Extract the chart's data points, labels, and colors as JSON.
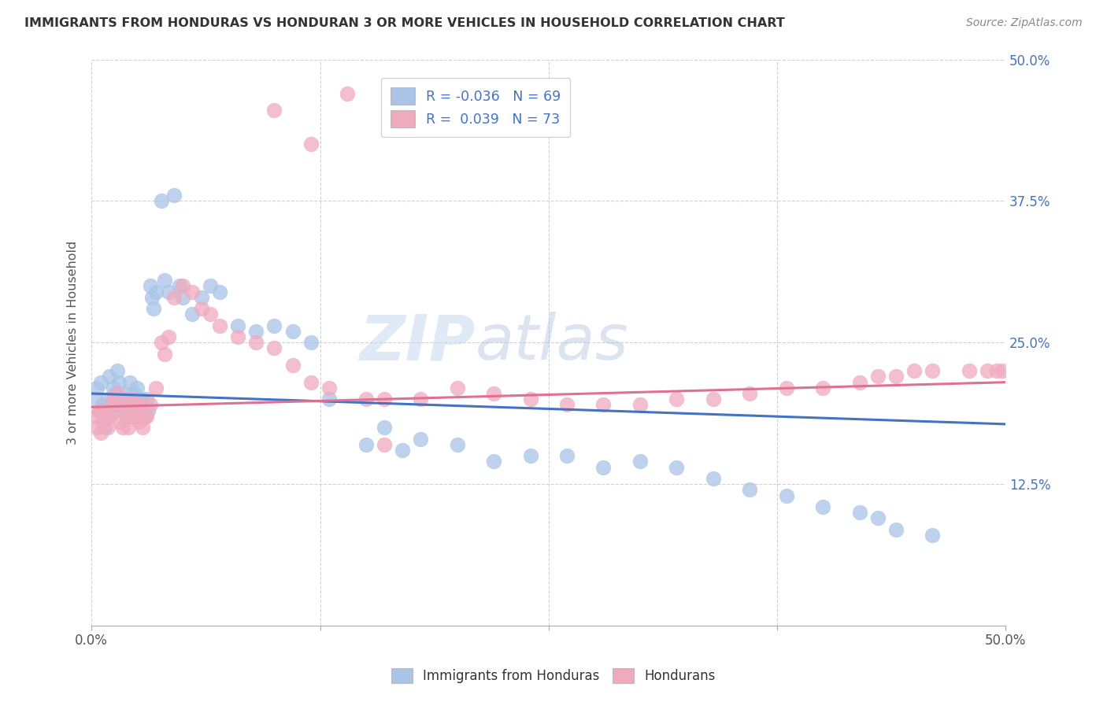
{
  "title": "IMMIGRANTS FROM HONDURAS VS HONDURAN 3 OR MORE VEHICLES IN HOUSEHOLD CORRELATION CHART",
  "source": "Source: ZipAtlas.com",
  "ylabel": "3 or more Vehicles in Household",
  "xlim": [
    0.0,
    0.5
  ],
  "ylim": [
    0.0,
    0.5
  ],
  "blue_color": "#aac4e8",
  "pink_color": "#f0aabe",
  "blue_line_color": "#4472c4",
  "pink_line_color": "#e07090",
  "watermark_zip": "ZIP",
  "watermark_atlas": "atlas",
  "blue_scatter_x": [
    0.002,
    0.003,
    0.004,
    0.005,
    0.006,
    0.007,
    0.008,
    0.009,
    0.01,
    0.011,
    0.012,
    0.013,
    0.014,
    0.015,
    0.016,
    0.017,
    0.018,
    0.019,
    0.02,
    0.021,
    0.022,
    0.023,
    0.024,
    0.025,
    0.026,
    0.027,
    0.028,
    0.029,
    0.03,
    0.031,
    0.032,
    0.033,
    0.034,
    0.035,
    0.038,
    0.04,
    0.042,
    0.045,
    0.048,
    0.05,
    0.055,
    0.06,
    0.065,
    0.07,
    0.08,
    0.09,
    0.1,
    0.11,
    0.12,
    0.13,
    0.15,
    0.16,
    0.17,
    0.18,
    0.2,
    0.22,
    0.24,
    0.26,
    0.28,
    0.3,
    0.32,
    0.34,
    0.36,
    0.38,
    0.4,
    0.42,
    0.43,
    0.44,
    0.46
  ],
  "blue_scatter_y": [
    0.2,
    0.21,
    0.19,
    0.215,
    0.195,
    0.175,
    0.185,
    0.2,
    0.22,
    0.195,
    0.21,
    0.205,
    0.225,
    0.215,
    0.2,
    0.19,
    0.205,
    0.195,
    0.2,
    0.215,
    0.195,
    0.205,
    0.2,
    0.21,
    0.195,
    0.2,
    0.195,
    0.185,
    0.2,
    0.19,
    0.3,
    0.29,
    0.28,
    0.295,
    0.375,
    0.305,
    0.295,
    0.38,
    0.3,
    0.29,
    0.275,
    0.29,
    0.3,
    0.295,
    0.265,
    0.26,
    0.265,
    0.26,
    0.25,
    0.2,
    0.16,
    0.175,
    0.155,
    0.165,
    0.16,
    0.145,
    0.15,
    0.15,
    0.14,
    0.145,
    0.14,
    0.13,
    0.12,
    0.115,
    0.105,
    0.1,
    0.095,
    0.085,
    0.08
  ],
  "pink_scatter_x": [
    0.002,
    0.003,
    0.004,
    0.005,
    0.006,
    0.007,
    0.008,
    0.009,
    0.01,
    0.011,
    0.012,
    0.013,
    0.014,
    0.015,
    0.016,
    0.017,
    0.018,
    0.019,
    0.02,
    0.021,
    0.022,
    0.023,
    0.024,
    0.025,
    0.026,
    0.027,
    0.028,
    0.029,
    0.03,
    0.032,
    0.035,
    0.038,
    0.04,
    0.042,
    0.045,
    0.05,
    0.055,
    0.06,
    0.065,
    0.07,
    0.08,
    0.09,
    0.1,
    0.11,
    0.12,
    0.13,
    0.15,
    0.16,
    0.18,
    0.2,
    0.22,
    0.24,
    0.26,
    0.28,
    0.3,
    0.32,
    0.34,
    0.36,
    0.38,
    0.4,
    0.42,
    0.43,
    0.44,
    0.45,
    0.46,
    0.48,
    0.49,
    0.495,
    0.498,
    0.1,
    0.12,
    0.14,
    0.16
  ],
  "pink_scatter_y": [
    0.185,
    0.175,
    0.19,
    0.17,
    0.18,
    0.19,
    0.185,
    0.175,
    0.185,
    0.195,
    0.2,
    0.19,
    0.205,
    0.195,
    0.18,
    0.175,
    0.195,
    0.185,
    0.175,
    0.2,
    0.185,
    0.19,
    0.195,
    0.185,
    0.18,
    0.195,
    0.175,
    0.185,
    0.185,
    0.195,
    0.21,
    0.25,
    0.24,
    0.255,
    0.29,
    0.3,
    0.295,
    0.28,
    0.275,
    0.265,
    0.255,
    0.25,
    0.245,
    0.23,
    0.215,
    0.21,
    0.2,
    0.2,
    0.2,
    0.21,
    0.205,
    0.2,
    0.195,
    0.195,
    0.195,
    0.2,
    0.2,
    0.205,
    0.21,
    0.21,
    0.215,
    0.22,
    0.22,
    0.225,
    0.225,
    0.225,
    0.225,
    0.225,
    0.225,
    0.455,
    0.425,
    0.47,
    0.16
  ],
  "blue_R": "-0.036",
  "blue_N": "69",
  "pink_R": "0.039",
  "pink_N": "73",
  "ytick_values": [
    0.125,
    0.25,
    0.375,
    0.5
  ],
  "ytick_labels": [
    "12.5%",
    "25.0%",
    "37.5%",
    "50.0%"
  ],
  "xtick_values": [
    0.0,
    0.125,
    0.25,
    0.375,
    0.5
  ],
  "xtick_labels": [
    "0.0%",
    "",
    "",
    "",
    "50.0%"
  ]
}
